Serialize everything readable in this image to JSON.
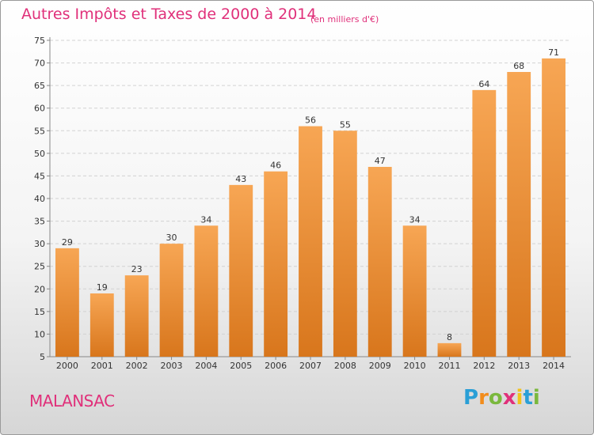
{
  "title": "Autres Impôts et Taxes de 2000 à 2014",
  "subtitle": "(en milliers d'€)",
  "city": "MALANSAC",
  "logo": {
    "text": "Proxiti",
    "letters": [
      "P",
      "r",
      "o",
      "x",
      "i",
      "t",
      "i"
    ],
    "colors": [
      "#2a9fd6",
      "#f28c1b",
      "#7ab83d",
      "#e0307a",
      "#f2c21b",
      "#2a9fd6",
      "#7ab83d"
    ]
  },
  "colors": {
    "bar_light": "#f7a654",
    "bar_dark": "#d8761c",
    "text_accent": "#e0307a"
  },
  "chart_data": {
    "type": "bar",
    "title": "Autres Impôts et Taxes de 2000 à 2014",
    "subtitle": "(en milliers d'€)",
    "categories": [
      "2000",
      "2001",
      "2002",
      "2003",
      "2004",
      "2005",
      "2006",
      "2007",
      "2008",
      "2009",
      "2010",
      "2011",
      "2012",
      "2013",
      "2014"
    ],
    "values": [
      29,
      19,
      23,
      30,
      34,
      43,
      46,
      56,
      55,
      47,
      34,
      8,
      64,
      68,
      71
    ],
    "ylim": [
      5,
      75
    ],
    "yticks": [
      5,
      10,
      15,
      20,
      25,
      30,
      35,
      40,
      45,
      50,
      55,
      60,
      65,
      70,
      75
    ],
    "grid": true
  }
}
